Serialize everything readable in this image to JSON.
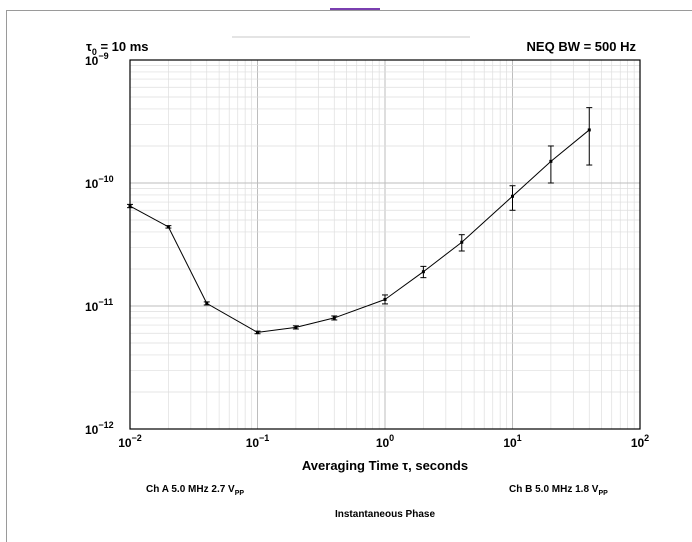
{
  "header": {
    "tau_main": "τ",
    "tau_sub": "0",
    "tau_rest": " = 10 ms",
    "bandwidth": "NEQ BW = 500 Hz"
  },
  "footer": {
    "ch_a_main": "Ch A 5.0 MHz 2.7 V",
    "ch_a_sub": "PP",
    "ch_b_main": "Ch B 5.0 MHz 1.8 V",
    "ch_b_sub": "PP",
    "caption": "Instantaneous Phase"
  },
  "chart_data": {
    "type": "line",
    "xlabel": "Averaging Time τ, seconds",
    "ylabel": "",
    "xscale": "log",
    "yscale": "log",
    "xlim": [
      0.01,
      100
    ],
    "ylim": [
      1e-12,
      1e-09
    ],
    "grid": true,
    "xticks": [
      {
        "value": 0.01,
        "base": "10",
        "exp": "−2"
      },
      {
        "value": 0.1,
        "base": "10",
        "exp": "−1"
      },
      {
        "value": 1,
        "base": "10",
        "exp": "0"
      },
      {
        "value": 10,
        "base": "10",
        "exp": "1"
      },
      {
        "value": 100,
        "base": "10",
        "exp": "2"
      }
    ],
    "yticks": [
      {
        "value": 1e-12,
        "base": "10",
        "exp": "−12"
      },
      {
        "value": 1e-11,
        "base": "10",
        "exp": "−11"
      },
      {
        "value": 1e-10,
        "base": "10",
        "exp": "−10"
      },
      {
        "value": 1e-09,
        "base": "10",
        "exp": "−9"
      }
    ],
    "series": [
      {
        "color": "#000000",
        "x": [
          0.01,
          0.02,
          0.04,
          0.1,
          0.2,
          0.4,
          1,
          2,
          4,
          10,
          20,
          40
        ],
        "y": [
          6.5e-11,
          4.4e-11,
          1.05e-11,
          6.1e-12,
          6.7e-12,
          8e-12,
          1.13e-11,
          1.9e-11,
          3.3e-11,
          7.8e-11,
          1.5e-10,
          2.7e-10
        ],
        "err_low": [
          6.3e-11,
          4.3e-11,
          1.02e-11,
          5.95e-12,
          6.5e-12,
          7.7e-12,
          1.04e-11,
          1.7e-11,
          2.8e-11,
          6e-11,
          1e-10,
          1.4e-10
        ],
        "err_high": [
          6.7e-11,
          4.5e-11,
          1.08e-11,
          6.25e-12,
          6.9e-12,
          8.3e-12,
          1.23e-11,
          2.1e-11,
          3.8e-11,
          9.5e-11,
          2e-10,
          4.1e-10
        ]
      }
    ]
  }
}
